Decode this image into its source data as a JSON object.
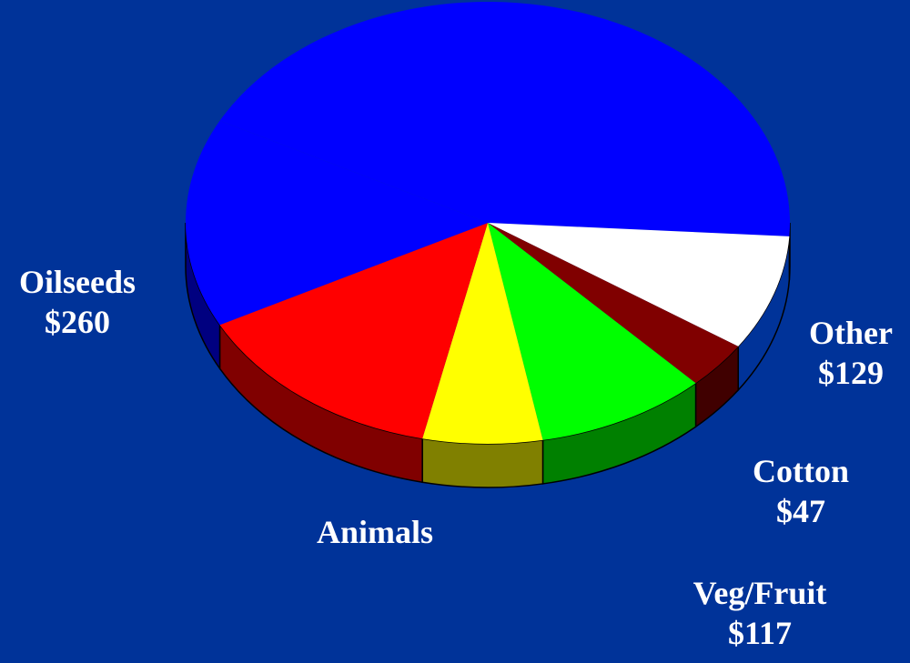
{
  "page": {
    "background": "#003399"
  },
  "chart_data": {
    "type": "pie",
    "style": "3d-tilted",
    "unit": "$",
    "slices": [
      {
        "name": "",
        "value": null,
        "color": "#0000ff"
      },
      {
        "name": "Other",
        "value": 129,
        "color": "#ffffff"
      },
      {
        "name": "Cotton",
        "value": 47,
        "color": "#800000"
      },
      {
        "name": "Veg/Fruit",
        "value": 117,
        "color": "#00ff00"
      },
      {
        "name": "Animals",
        "value": null,
        "color": "#ffff00"
      },
      {
        "name": "Oilseeds",
        "value": 260,
        "color": "#ff0000"
      }
    ],
    "labels": {
      "oilseeds": {
        "name": "Oilseeds",
        "value": "$260"
      },
      "other": {
        "name": "Other",
        "value": "$129"
      },
      "cotton": {
        "name": "Cotton",
        "value": "$47"
      },
      "animals": {
        "name": "Animals"
      },
      "vegfruit": {
        "name": "Veg/Fruit",
        "value": "$117"
      }
    }
  }
}
